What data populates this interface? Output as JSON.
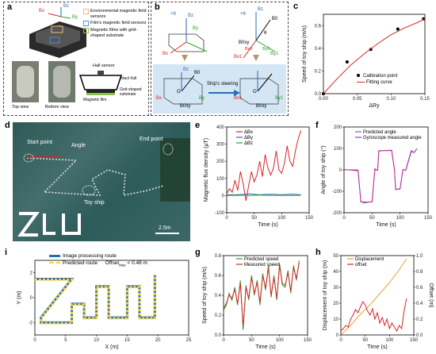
{
  "panels": {
    "a": {
      "letter": "a",
      "legend": [
        "Environmental magnetic field sensors",
        "Film's magnetic field sensors",
        "Magnetic films with grid-shaped substrate"
      ],
      "legend_colors": [
        "#e9c46a",
        "#4a90d9",
        "#8cc152"
      ],
      "bottom_labels": [
        "Top view",
        "Bottom view"
      ],
      "callouts": [
        "Hall sensor",
        "Intact hull",
        "Magnetic film",
        "Grid-shaped substrate"
      ],
      "sensor_labels": [
        "Bx",
        "By",
        "Bz"
      ]
    },
    "b": {
      "letter": "b",
      "steering_label": "Ship's steering",
      "labels_left": [
        "+θ",
        "By",
        "Bx",
        "Bz",
        "B0",
        "O",
        "Bx",
        "By",
        "Bz",
        "B0xy"
      ],
      "labels_right": [
        "+θ",
        "Bz",
        "B0",
        "θ",
        "Bx1",
        "By1",
        "B0xy",
        "Bx0",
        "By0",
        "O",
        "B0xy",
        "Bx1",
        "By1"
      ]
    },
    "c": {
      "letter": "c",
      "legend": [
        "Calibration point",
        "Fitting curve"
      ]
    },
    "d": {
      "letter": "d",
      "labels": [
        "Start point",
        "Angle",
        "End point",
        "Toy ship",
        "2.5m"
      ]
    },
    "e": {
      "letter": "e"
    },
    "f": {
      "letter": "f"
    },
    "g": {
      "letter": "g"
    },
    "h": {
      "letter": "h"
    },
    "i": {
      "letter": "i",
      "legend": [
        "Image processing route",
        "Predicted route"
      ],
      "offset_text": "Offset",
      "offset_sub": "Max",
      "offset_value": "< 0.48 m"
    }
  },
  "chart_data": [
    {
      "id": "c",
      "type": "scatter",
      "xlabel": "ΔRy",
      "ylabel": "Speed of toy ship (m/s)",
      "xlim": [
        0.0,
        0.15
      ],
      "ylim": [
        0.0,
        0.7
      ],
      "xticks": [
        "0.00",
        "0.05",
        "0.10",
        "0.15"
      ],
      "yticks": [
        "0.0",
        "0.2",
        "0.4",
        "0.6"
      ],
      "series": [
        {
          "name": "Calibration point",
          "color": "#000000",
          "x": [
            0.0,
            0.035,
            0.07,
            0.11,
            0.148
          ],
          "y": [
            0.0,
            0.28,
            0.39,
            0.57,
            0.66
          ]
        },
        {
          "name": "Fitting curve",
          "color": "#d62728",
          "x": [
            0.0,
            0.02,
            0.04,
            0.06,
            0.08,
            0.1,
            0.12,
            0.14,
            0.15
          ],
          "y": [
            0.0,
            0.13,
            0.25,
            0.35,
            0.44,
            0.52,
            0.58,
            0.63,
            0.66
          ]
        }
      ]
    },
    {
      "id": "e",
      "type": "line",
      "xlabel": "Time (s)",
      "ylabel": "Magnetic flux density (μT)",
      "xlim": [
        0,
        150
      ],
      "ylim": [
        -100,
        400
      ],
      "xticks": [
        "0",
        "50",
        "100",
        "150"
      ],
      "yticks": [
        "-100",
        "0",
        "100",
        "200",
        "300",
        "400"
      ],
      "series": [
        {
          "name": "ΔBx",
          "color": "#d62728",
          "x": [
            0,
            5,
            10,
            15,
            20,
            25,
            30,
            35,
            40,
            45,
            50,
            55,
            60,
            65,
            70,
            75,
            80,
            85,
            90,
            95,
            100,
            105,
            110,
            115,
            120,
            125,
            130,
            135
          ],
          "y": [
            10,
            40,
            20,
            90,
            30,
            140,
            70,
            -30,
            60,
            140,
            80,
            120,
            200,
            110,
            240,
            160,
            120,
            160,
            260,
            150,
            130,
            190,
            290,
            200,
            170,
            260,
            330,
            380
          ]
        },
        {
          "name": "ΔBy",
          "color": "#2a6bb5",
          "x": [
            0,
            20,
            40,
            60,
            80,
            100,
            120,
            135
          ],
          "y": [
            5,
            5,
            10,
            5,
            8,
            5,
            8,
            5
          ]
        },
        {
          "name": "ΔBz",
          "color": "#2ca02c",
          "x": [
            0,
            20,
            40,
            60,
            80,
            100,
            120,
            135
          ],
          "y": [
            0,
            2,
            0,
            3,
            0,
            2,
            0,
            2
          ]
        }
      ]
    },
    {
      "id": "f",
      "type": "line",
      "xlabel": "Time (s)",
      "ylabel": "Angle of toy ship (°)",
      "xlim": [
        0,
        150
      ],
      "ylim": [
        -200,
        200
      ],
      "xticks": [
        "0",
        "50",
        "100",
        "150"
      ],
      "yticks": [
        "-200",
        "-100",
        "0",
        "100",
        "200"
      ],
      "series": [
        {
          "name": "Predicted angle",
          "color": "#4a6fd4",
          "x": [
            0,
            15,
            25,
            30,
            35,
            50,
            55,
            60,
            62,
            85,
            90,
            92,
            100,
            105,
            110,
            120,
            125,
            130
          ],
          "y": [
            0,
            0,
            0,
            -150,
            -150,
            -150,
            0,
            0,
            90,
            90,
            0,
            -90,
            -90,
            0,
            0,
            90,
            80,
            100
          ]
        },
        {
          "name": "Gyroscope measured angle",
          "color": "#d02b8f",
          "x": [
            0,
            15,
            25,
            30,
            35,
            50,
            55,
            60,
            62,
            85,
            90,
            92,
            100,
            105,
            110,
            120,
            125,
            130
          ],
          "y": [
            2,
            -2,
            -5,
            -145,
            -155,
            -148,
            5,
            -3,
            88,
            92,
            3,
            -92,
            -88,
            2,
            -3,
            85,
            82,
            98
          ]
        }
      ]
    },
    {
      "id": "g",
      "type": "line",
      "xlabel": "Time (s)",
      "ylabel": "Speed of toy ship (m/s)",
      "xlim": [
        0,
        150
      ],
      "ylim": [
        0.0,
        0.8
      ],
      "xticks": [
        "0",
        "50",
        "100",
        "150"
      ],
      "yticks": [
        "0.0",
        "0.2",
        "0.4",
        "0.6",
        "0.8"
      ],
      "series": [
        {
          "name": "Predicted speed",
          "color": "#2ca02c",
          "x": [
            0,
            5,
            10,
            15,
            20,
            25,
            30,
            35,
            40,
            45,
            50,
            55,
            60,
            65,
            70,
            75,
            80,
            85,
            90,
            95,
            100,
            105,
            110,
            115,
            120,
            125,
            130,
            135
          ],
          "y": [
            0.25,
            0.3,
            0.42,
            0.35,
            0.48,
            0.3,
            0.55,
            0.05,
            0.5,
            0.35,
            0.6,
            0.4,
            0.55,
            0.3,
            0.62,
            0.45,
            0.7,
            0.38,
            0.6,
            0.35,
            0.72,
            0.5,
            0.48,
            0.65,
            0.42,
            0.7,
            0.55,
            0.75
          ]
        },
        {
          "name": "Measured speed",
          "color": "#d62728",
          "x": [
            0,
            5,
            10,
            15,
            20,
            25,
            30,
            35,
            40,
            45,
            50,
            55,
            60,
            65,
            70,
            75,
            80,
            85,
            90,
            95,
            100,
            105,
            110,
            115,
            120,
            125,
            130,
            135
          ],
          "y": [
            0.27,
            0.32,
            0.4,
            0.37,
            0.46,
            0.32,
            0.52,
            0.08,
            0.48,
            0.37,
            0.58,
            0.42,
            0.53,
            0.33,
            0.6,
            0.47,
            0.68,
            0.4,
            0.58,
            0.37,
            0.7,
            0.52,
            0.5,
            0.63,
            0.44,
            0.68,
            0.57,
            0.73
          ]
        }
      ]
    },
    {
      "id": "h",
      "type": "line",
      "xlabel": "Time (s)",
      "ylabel": "Displacement of toy ship (m)",
      "y2label": "Offset (m)",
      "xlim": [
        0,
        150
      ],
      "ylim": [
        0,
        50
      ],
      "y2lim": [
        0,
        1.0
      ],
      "xticks": [
        "0",
        "50",
        "100",
        "150"
      ],
      "yticks": [
        "0",
        "10",
        "20",
        "30",
        "40",
        "50"
      ],
      "y2ticks": [
        "0.0",
        "0.2",
        "0.4",
        "0.6",
        "0.8",
        "1.0"
      ],
      "series": [
        {
          "name": "Displacement",
          "color": "#e8a33d",
          "axis": "left",
          "x": [
            0,
            20,
            40,
            60,
            80,
            100,
            120,
            135
          ],
          "y": [
            0,
            6,
            13,
            19,
            26,
            33,
            41,
            48
          ]
        },
        {
          "name": "offset",
          "color": "#d62728",
          "axis": "right",
          "x": [
            0,
            5,
            10,
            15,
            20,
            25,
            30,
            35,
            40,
            45,
            50,
            55,
            60,
            65,
            70,
            75,
            80,
            85,
            90,
            95,
            100,
            105,
            110,
            115,
            120,
            125,
            130,
            135
          ],
          "y": [
            0.05,
            0.08,
            0.12,
            0.1,
            0.2,
            0.25,
            0.32,
            0.28,
            0.35,
            0.42,
            0.38,
            0.3,
            0.25,
            0.33,
            0.2,
            0.28,
            0.15,
            0.22,
            0.12,
            0.2,
            0.08,
            0.15,
            0.1,
            0.05,
            0.12,
            0.08,
            0.3,
            0.46
          ]
        }
      ]
    },
    {
      "id": "i",
      "type": "line",
      "xlabel": "X (m)",
      "ylabel": "Y (m)",
      "xlim": [
        0,
        25
      ],
      "ylim": [
        -3,
        3
      ],
      "xticks": [
        "0",
        "5",
        "10",
        "15",
        "20",
        "25"
      ],
      "yticks": [
        "-2",
        "0",
        "2"
      ],
      "series": [
        {
          "name": "Image processing route",
          "color": "#2a6bb5",
          "x": [
            0,
            6,
            1,
            1,
            6,
            6,
            8,
            8,
            10,
            10,
            12,
            12,
            14,
            15,
            15,
            17,
            17,
            19.5,
            19.5
          ],
          "y": [
            1.5,
            1.5,
            -1.6,
            -2.0,
            -2.0,
            -0.5,
            -0.5,
            -1.6,
            -1.6,
            0.9,
            0.9,
            -1.6,
            -1.6,
            -1.6,
            0.9,
            0.9,
            -1.6,
            -1.6,
            1.8
          ]
        },
        {
          "name": "Predicted route",
          "color": "#f2d43c",
          "x": [
            0,
            6,
            1,
            1,
            6,
            6,
            8,
            8,
            10,
            10,
            12,
            12,
            14,
            15,
            15,
            17,
            17,
            19.5,
            19.5
          ],
          "y": [
            1.45,
            1.45,
            -1.65,
            -2.05,
            -2.05,
            -0.55,
            -0.55,
            -1.65,
            -1.65,
            0.85,
            0.85,
            -1.65,
            -1.65,
            -1.65,
            0.85,
            0.85,
            -1.65,
            -1.65,
            1.75
          ]
        }
      ]
    }
  ]
}
